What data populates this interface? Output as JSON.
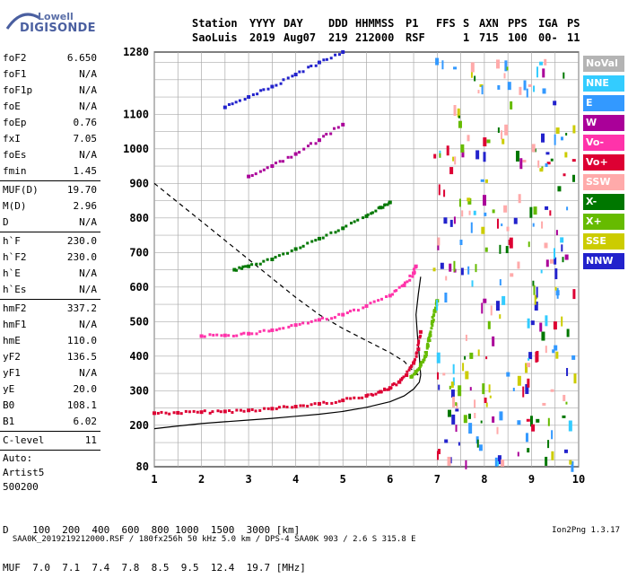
{
  "logo": {
    "line1": "Lowell",
    "line2": "DIGISONDE"
  },
  "header": {
    "row1": [
      "Station",
      "YYYY",
      "DAY",
      "DDD",
      "HHMMSS",
      "P1",
      "FFS",
      "S",
      "AXN",
      "PPS",
      "IGA",
      "PS"
    ],
    "row2": [
      "SaoLuis",
      "2019",
      "Aug07",
      "219",
      "212000",
      "RSF",
      "1",
      "715",
      "100",
      "00-",
      "11"
    ]
  },
  "params": [
    {
      "label": "foF2",
      "value": "6.650"
    },
    {
      "label": "foF1",
      "value": "N/A"
    },
    {
      "label": "foF1p",
      "value": "N/A"
    },
    {
      "label": "foE",
      "value": "N/A"
    },
    {
      "label": "foEp",
      "value": "0.76"
    },
    {
      "label": "fxI",
      "value": "7.05"
    },
    {
      "label": "foEs",
      "value": "N/A"
    },
    {
      "label": "fmin",
      "value": "1.45"
    },
    {
      "label": "MUF(D)",
      "value": "19.70"
    },
    {
      "label": "M(D)",
      "value": "2.96"
    },
    {
      "label": "D",
      "value": "N/A"
    },
    {
      "label": "h`F",
      "value": "230.0"
    },
    {
      "label": "h`F2",
      "value": "230.0"
    },
    {
      "label": "h`E",
      "value": "N/A"
    },
    {
      "label": "h`Es",
      "value": "N/A"
    },
    {
      "label": "hmF2",
      "value": "337.2"
    },
    {
      "label": "hmF1",
      "value": "N/A"
    },
    {
      "label": "hmE",
      "value": "110.0"
    },
    {
      "label": "yF2",
      "value": "136.5"
    },
    {
      "label": "yF1",
      "value": "N/A"
    },
    {
      "label": "yE",
      "value": "20.0"
    },
    {
      "label": "B0",
      "value": "108.1"
    },
    {
      "label": "B1",
      "value": "6.02"
    },
    {
      "label": "C-level",
      "value": "11"
    }
  ],
  "auto": {
    "line1": "Auto:",
    "line2": "Artist5",
    "line3": "500200"
  },
  "legend": [
    {
      "label": "NoVal",
      "color": "#b4b4b4"
    },
    {
      "label": "NNE",
      "color": "#33ccff"
    },
    {
      "label": "E",
      "color": "#3399ff"
    },
    {
      "label": "W",
      "color": "#aa0099"
    },
    {
      "label": "Vo-",
      "color": "#ff33aa"
    },
    {
      "label": "Vo+",
      "color": "#dd0033"
    },
    {
      "label": "SSW",
      "color": "#ffaaaa"
    },
    {
      "label": "X-",
      "color": "#007700"
    },
    {
      "label": "X+",
      "color": "#66bb00"
    },
    {
      "label": "SSE",
      "color": "#cccc00"
    },
    {
      "label": "NNW",
      "color": "#2222cc"
    }
  ],
  "distance_table": {
    "d_label": "D",
    "d_values": [
      "100",
      "200",
      "400",
      "600",
      "800",
      "1000",
      "1500",
      "3000"
    ],
    "d_unit": "[km]",
    "muf_label": "MUF",
    "muf_values": [
      "7.0",
      "7.1",
      "7.4",
      "7.8",
      "8.5",
      "9.5",
      "12.4",
      "19.7"
    ],
    "muf_unit": "[MHz]"
  },
  "footer": {
    "left": "SAA0K_2019219212000.RSF / 180fx256h 50 kHz 5.0 km / DPS-4 SAA0K 903 / 2.6 S 315.8 E",
    "right": "Ion2Png 1.3.17"
  },
  "chart_data": {
    "type": "scatter",
    "x_ticks": [
      1,
      2,
      3,
      4,
      5,
      6,
      7,
      8,
      9,
      10
    ],
    "y_ticks": [
      80,
      200,
      300,
      400,
      500,
      600,
      700,
      800,
      900,
      1000,
      1100,
      1280
    ],
    "xlim": [
      1,
      10
    ],
    "ylim": [
      80,
      1280
    ],
    "grid": true,
    "series": [
      {
        "name": "Vo+",
        "x": [
          1.0,
          1.5,
          2.0,
          2.5,
          3.0,
          3.5,
          4.0,
          4.5,
          5.0,
          5.5,
          5.8,
          6.0,
          6.2,
          6.35,
          6.5,
          6.6,
          6.65
        ],
        "y": [
          235,
          236,
          238,
          240,
          243,
          248,
          254,
          262,
          272,
          285,
          297,
          308,
          325,
          345,
          380,
          420,
          470
        ]
      },
      {
        "name": "X+",
        "x": [
          6.45,
          6.55,
          6.65,
          6.75,
          6.8,
          6.85,
          6.9,
          6.95,
          7.0
        ],
        "y": [
          340,
          355,
          375,
          400,
          430,
          460,
          500,
          530,
          560
        ]
      },
      {
        "name": "Vo-",
        "x": [
          2.0,
          2.5,
          3.0,
          3.5,
          4.0,
          4.5,
          5.0,
          5.5,
          6.0,
          6.3,
          6.5,
          6.55
        ],
        "y": [
          458,
          460,
          465,
          475,
          490,
          505,
          520,
          545,
          575,
          605,
          640,
          660
        ]
      },
      {
        "name": "X-",
        "x": [
          2.7,
          3.0,
          3.5,
          4.0,
          4.5,
          5.0,
          5.5,
          5.8,
          6.0
        ],
        "y": [
          650,
          660,
          680,
          710,
          740,
          770,
          805,
          830,
          845
        ]
      },
      {
        "name": "W",
        "x": [
          3.0,
          3.5,
          4.0,
          4.5,
          5.0
        ],
        "y": [
          920,
          950,
          985,
          1025,
          1070
        ]
      },
      {
        "name": "NNW",
        "x": [
          2.5,
          3.0,
          3.5,
          4.0,
          4.5,
          5.0
        ],
        "y": [
          1120,
          1150,
          1180,
          1215,
          1250,
          1280
        ]
      }
    ],
    "curves": [
      {
        "style": "solid",
        "x": [
          1.0,
          1.5,
          2.0,
          2.5,
          3.0,
          3.5,
          4.0,
          4.5,
          5.0,
          5.5,
          6.0,
          6.3,
          6.5,
          6.62,
          6.65
        ],
        "y": [
          190,
          198,
          205,
          210,
          215,
          220,
          226,
          232,
          240,
          252,
          268,
          285,
          305,
          325,
          345
        ]
      },
      {
        "style": "solid",
        "x": [
          6.65,
          6.62,
          6.58,
          6.55,
          6.6,
          6.65
        ],
        "y": [
          345,
          400,
          460,
          520,
          580,
          630
        ]
      },
      {
        "style": "dashed",
        "x": [
          1.0,
          1.5,
          2.0,
          2.5,
          3.0,
          3.5,
          4.0,
          4.5,
          5.0,
          5.5,
          6.0,
          6.3,
          6.5,
          6.65
        ],
        "y": [
          900,
          845,
          790,
          735,
          680,
          625,
          570,
          520,
          480,
          445,
          410,
          385,
          355,
          340
        ]
      }
    ]
  }
}
